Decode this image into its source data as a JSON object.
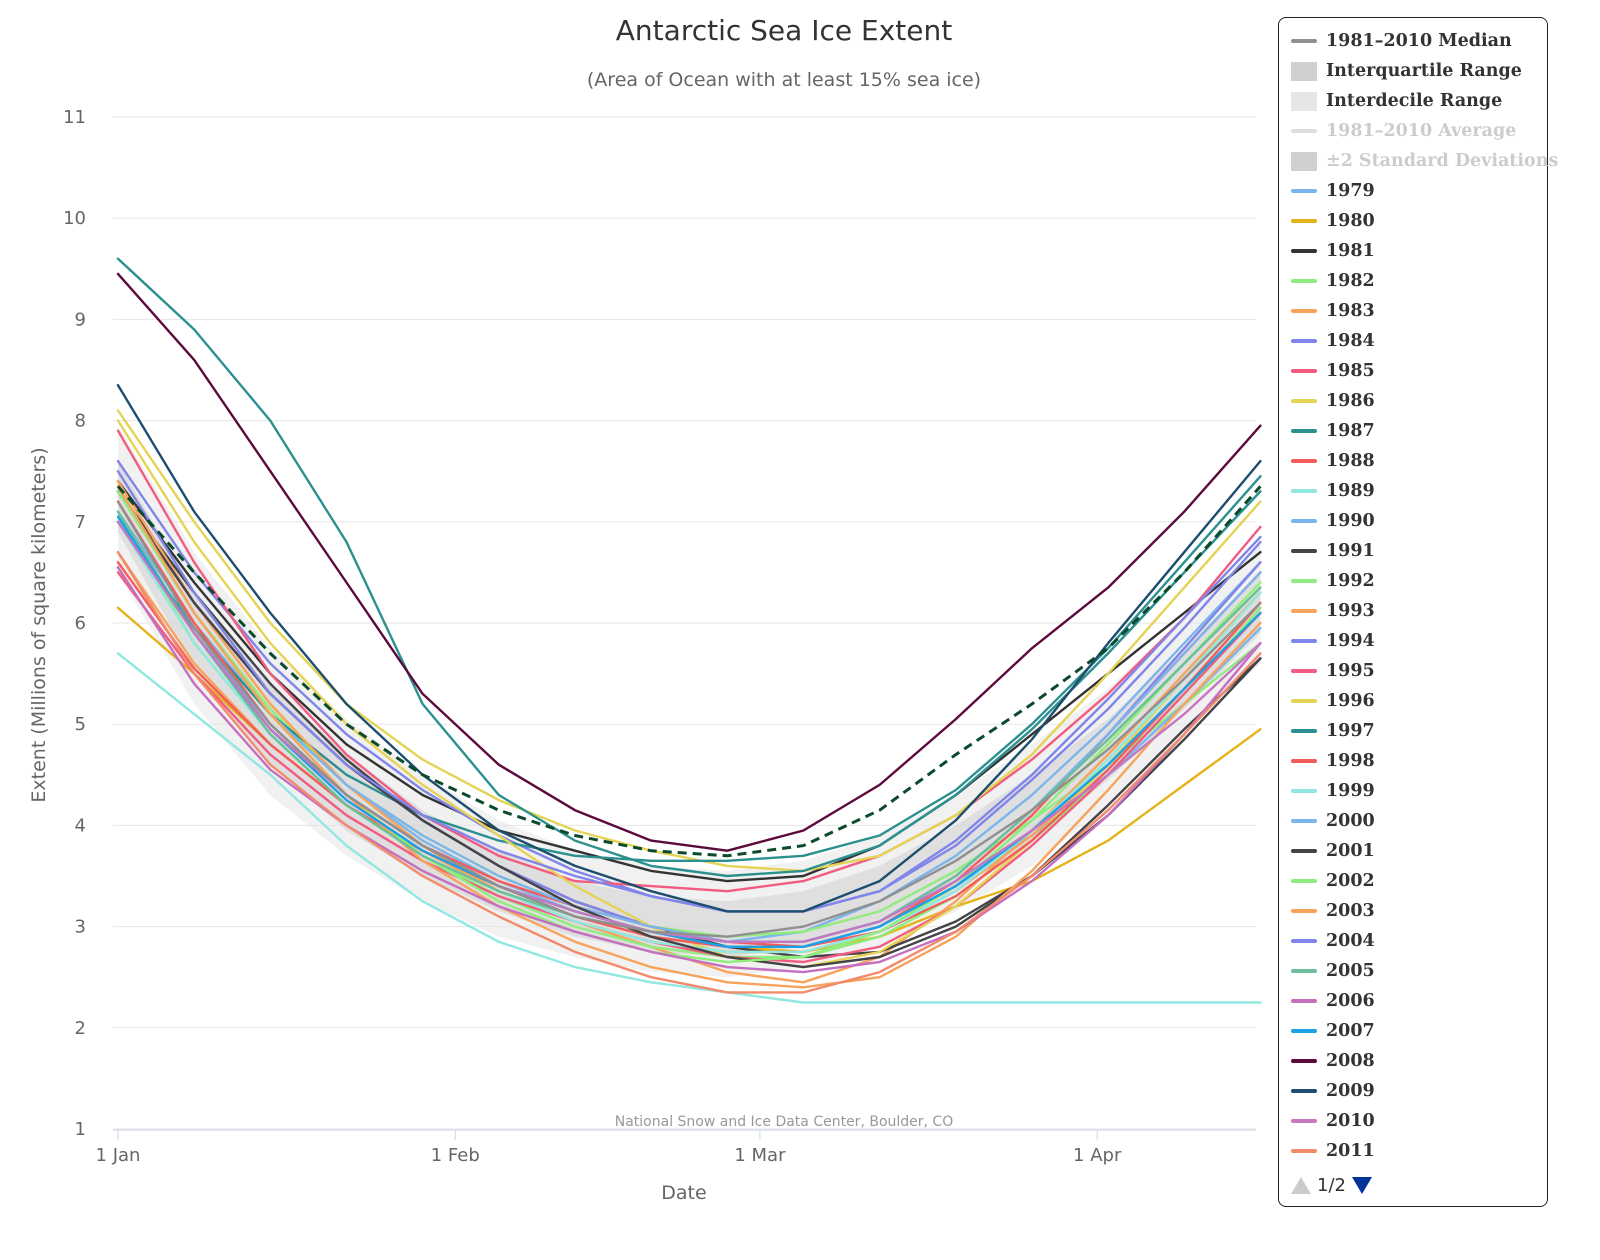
{
  "chart_data": {
    "type": "line",
    "title": "Antarctic Sea Ice Extent",
    "subtitle": "(Area of Ocean with at least 15% sea ice)",
    "xlabel": "Date",
    "ylabel": "Extent (Millions of square kilometers)",
    "credit": "National Snow and Ice Data Center, Boulder, CO",
    "xlim": [
      1,
      107
    ],
    "ylim": [
      1,
      11
    ],
    "yticks": [
      1,
      2,
      3,
      4,
      5,
      6,
      7,
      8,
      9,
      10,
      11
    ],
    "xticks": [
      {
        "label": "1 Jan",
        "day": 1
      },
      {
        "label": "1 Feb",
        "day": 32
      },
      {
        "label": "1 Mar",
        "day": 60
      },
      {
        "label": "1 Apr",
        "day": 91
      }
    ],
    "x": [
      1,
      8,
      15,
      22,
      29,
      36,
      43,
      50,
      57,
      64,
      71,
      78,
      85,
      92,
      99,
      106
    ],
    "median": {
      "name": "1981–2010 Median",
      "values": [
        7.2,
        5.95,
        5.0,
        4.3,
        3.8,
        3.4,
        3.1,
        2.95,
        2.9,
        3.0,
        3.25,
        3.65,
        4.15,
        4.75,
        5.45,
        6.2
      ]
    },
    "interquartile": {
      "name": "Interquartile Range",
      "lower": [
        6.9,
        5.55,
        4.6,
        3.95,
        3.5,
        3.15,
        2.9,
        2.75,
        2.7,
        2.8,
        3.0,
        3.35,
        3.85,
        4.45,
        5.15,
        5.9
      ],
      "upper": [
        7.6,
        6.3,
        5.4,
        4.7,
        4.15,
        3.75,
        3.45,
        3.3,
        3.25,
        3.35,
        3.6,
        4.0,
        4.5,
        5.05,
        5.75,
        6.5
      ]
    },
    "interdecile": {
      "name": "Interdecile Range",
      "lower": [
        6.5,
        5.2,
        4.3,
        3.7,
        3.25,
        2.9,
        2.7,
        2.55,
        2.5,
        2.6,
        2.8,
        3.15,
        3.6,
        4.2,
        4.9,
        5.6
      ],
      "upper": [
        7.95,
        6.7,
        5.75,
        5.05,
        4.5,
        4.05,
        3.75,
        3.6,
        3.55,
        3.65,
        3.9,
        4.3,
        4.8,
        5.35,
        6.05,
        6.8
      ]
    },
    "current": {
      "color": "#0b4a2a",
      "values": [
        7.35,
        6.5,
        5.7,
        5.0,
        4.5,
        4.15,
        3.9,
        3.75,
        3.7,
        3.8,
        4.15,
        4.7,
        5.2,
        5.75,
        6.5,
        7.35
      ]
    },
    "series": [
      {
        "name": "1979",
        "color": "#7cb5ec",
        "values": [
          7.1,
          6.0,
          5.1,
          4.4,
          3.85,
          3.45,
          3.15,
          2.95,
          2.85,
          2.95,
          3.25,
          3.7,
          4.3,
          5.0,
          5.8,
          6.6
        ]
      },
      {
        "name": "1980",
        "color": "#e5b319",
        "values": [
          6.15,
          5.5,
          4.8,
          4.2,
          3.75,
          3.4,
          3.1,
          2.9,
          2.8,
          2.75,
          2.9,
          3.2,
          3.45,
          3.85,
          4.4,
          4.95
        ]
      },
      {
        "name": "1981",
        "color": "#333333",
        "values": [
          7.4,
          6.4,
          5.5,
          4.8,
          4.3,
          3.95,
          3.75,
          3.55,
          3.45,
          3.5,
          3.8,
          4.3,
          4.9,
          5.5,
          6.1,
          6.7
        ]
      },
      {
        "name": "1982",
        "color": "#90ed7d",
        "values": [
          7.3,
          6.1,
          5.15,
          4.4,
          3.9,
          3.5,
          3.2,
          3.0,
          2.9,
          2.95,
          3.15,
          3.55,
          4.05,
          4.6,
          5.2,
          5.8
        ]
      },
      {
        "name": "1983",
        "color": "#f7a35c",
        "values": [
          6.7,
          5.6,
          4.8,
          4.2,
          3.75,
          3.35,
          3.05,
          2.8,
          2.55,
          2.45,
          2.7,
          3.25,
          3.95,
          4.7,
          5.5,
          6.3
        ]
      },
      {
        "name": "1984",
        "color": "#8085e9",
        "values": [
          7.6,
          6.5,
          5.6,
          4.9,
          4.35,
          3.9,
          3.55,
          3.3,
          3.15,
          3.15,
          3.35,
          3.8,
          4.45,
          5.15,
          5.95,
          6.8
        ]
      },
      {
        "name": "1985",
        "color": "#f15c80",
        "values": [
          7.9,
          6.6,
          5.5,
          4.7,
          4.1,
          3.7,
          3.45,
          3.4,
          3.35,
          3.45,
          3.7,
          4.1,
          4.65,
          5.3,
          6.05,
          6.95
        ]
      },
      {
        "name": "1986",
        "color": "#e4d354",
        "values": [
          8.1,
          7.0,
          6.0,
          5.2,
          4.65,
          4.25,
          3.95,
          3.75,
          3.6,
          3.55,
          3.7,
          4.1,
          4.7,
          5.5,
          6.35,
          7.2
        ]
      },
      {
        "name": "1987",
        "color": "#2b908f",
        "values": [
          7.0,
          5.95,
          5.1,
          4.5,
          4.1,
          3.85,
          3.7,
          3.65,
          3.65,
          3.7,
          3.9,
          4.35,
          5.0,
          5.75,
          6.6,
          7.45
        ]
      },
      {
        "name": "1988",
        "color": "#f45b5b",
        "values": [
          7.2,
          6.0,
          5.0,
          4.3,
          3.8,
          3.45,
          3.2,
          3.0,
          2.85,
          2.8,
          3.0,
          3.45,
          4.1,
          4.9,
          5.7,
          6.5
        ]
      },
      {
        "name": "1989",
        "color": "#91e8e1",
        "values": [
          5.7,
          5.1,
          4.5,
          3.8,
          3.25,
          2.85,
          2.6,
          2.45,
          2.35,
          2.25,
          2.25,
          2.25,
          2.25,
          2.25,
          2.25,
          2.25
        ]
      },
      {
        "name": "1990",
        "color": "#7cb5ec",
        "values": [
          7.0,
          5.9,
          5.0,
          4.3,
          3.8,
          3.4,
          3.1,
          2.9,
          2.8,
          2.8,
          3.0,
          3.4,
          3.9,
          4.5,
          5.2,
          5.95
        ]
      },
      {
        "name": "1991",
        "color": "#434348",
        "values": [
          7.3,
          6.3,
          5.4,
          4.65,
          4.05,
          3.6,
          3.25,
          3.0,
          2.8,
          2.7,
          2.75,
          3.05,
          3.5,
          4.1,
          4.85,
          5.65
        ]
      },
      {
        "name": "1992",
        "color": "#90ed7d",
        "values": [
          7.1,
          5.8,
          4.9,
          4.2,
          3.7,
          3.3,
          3.0,
          2.8,
          2.7,
          2.7,
          2.9,
          3.3,
          3.85,
          4.5,
          5.3,
          6.15
        ]
      },
      {
        "name": "1993",
        "color": "#f7a35c",
        "values": [
          7.4,
          6.2,
          5.2,
          4.4,
          3.8,
          3.35,
          3.05,
          2.85,
          2.75,
          2.75,
          2.95,
          3.35,
          3.9,
          4.6,
          5.35,
          6.1
        ]
      },
      {
        "name": "1994",
        "color": "#8085e9",
        "values": [
          7.3,
          6.2,
          5.3,
          4.6,
          4.05,
          3.6,
          3.25,
          3.0,
          2.85,
          2.85,
          3.05,
          3.5,
          4.15,
          4.9,
          5.75,
          6.6
        ]
      },
      {
        "name": "1995",
        "color": "#f15c80",
        "values": [
          6.5,
          5.5,
          4.7,
          4.1,
          3.65,
          3.3,
          3.05,
          2.85,
          2.7,
          2.65,
          2.8,
          3.2,
          3.8,
          4.5,
          5.3,
          6.1
        ]
      },
      {
        "name": "1996",
        "color": "#e4d354",
        "values": [
          8.0,
          6.8,
          5.8,
          5.0,
          4.4,
          3.9,
          3.4,
          3.0,
          2.7,
          2.6,
          2.75,
          3.2,
          3.85,
          4.6,
          5.45,
          6.3
        ]
      },
      {
        "name": "1997",
        "color": "#2b908f",
        "values": [
          9.6,
          8.9,
          8.0,
          6.8,
          5.2,
          4.3,
          3.85,
          3.6,
          3.5,
          3.55,
          3.8,
          4.3,
          4.95,
          5.7,
          6.5,
          7.3
        ]
      },
      {
        "name": "1998",
        "color": "#f45b5b",
        "values": [
          6.6,
          5.55,
          4.8,
          4.2,
          3.75,
          3.4,
          3.1,
          2.9,
          2.8,
          2.8,
          2.95,
          3.3,
          3.85,
          4.55,
          5.35,
          6.2
        ]
      },
      {
        "name": "1999",
        "color": "#91e8e1",
        "values": [
          7.0,
          5.8,
          4.9,
          4.2,
          3.7,
          3.35,
          3.05,
          2.85,
          2.75,
          2.75,
          2.95,
          3.35,
          3.95,
          4.65,
          5.45,
          6.3
        ]
      },
      {
        "name": "2000",
        "color": "#7cb5ec",
        "values": [
          7.3,
          6.1,
          5.1,
          4.4,
          3.9,
          3.5,
          3.2,
          3.0,
          2.85,
          2.85,
          3.05,
          3.5,
          4.15,
          4.9,
          5.7,
          6.5
        ]
      },
      {
        "name": "2001",
        "color": "#434348",
        "values": [
          7.3,
          6.2,
          5.3,
          4.6,
          4.05,
          3.6,
          3.2,
          2.9,
          2.7,
          2.6,
          2.7,
          3.0,
          3.5,
          4.2,
          4.95,
          5.65
        ]
      },
      {
        "name": "2002",
        "color": "#90ed7d",
        "values": [
          7.3,
          6.1,
          5.1,
          4.3,
          3.7,
          3.25,
          2.95,
          2.75,
          2.65,
          2.7,
          2.95,
          3.4,
          4.05,
          4.8,
          5.6,
          6.4
        ]
      },
      {
        "name": "2003",
        "color": "#f7a35c",
        "values": [
          7.35,
          6.1,
          5.1,
          4.3,
          3.65,
          3.2,
          2.85,
          2.6,
          2.45,
          2.4,
          2.5,
          2.9,
          3.55,
          4.35,
          5.2,
          6.0
        ]
      },
      {
        "name": "2004",
        "color": "#8085e9",
        "values": [
          7.5,
          6.3,
          5.3,
          4.6,
          4.1,
          3.75,
          3.5,
          3.3,
          3.15,
          3.15,
          3.35,
          3.85,
          4.5,
          5.25,
          6.05,
          6.85
        ]
      },
      {
        "name": "2005",
        "color": "#6bbf9a",
        "values": [
          7.1,
          5.9,
          4.9,
          4.2,
          3.7,
          3.35,
          3.1,
          2.95,
          2.85,
          2.85,
          3.05,
          3.5,
          4.15,
          4.85,
          5.6,
          6.35
        ]
      },
      {
        "name": "2006",
        "color": "#c56fbf",
        "values": [
          6.55,
          5.4,
          4.55,
          4.0,
          3.55,
          3.2,
          2.95,
          2.75,
          2.6,
          2.55,
          2.65,
          2.95,
          3.45,
          4.1,
          4.9,
          5.8
        ]
      },
      {
        "name": "2007",
        "color": "#1ca0e6",
        "values": [
          7.05,
          5.9,
          4.95,
          4.25,
          3.75,
          3.4,
          3.15,
          2.95,
          2.8,
          2.8,
          3.0,
          3.4,
          3.95,
          4.6,
          5.35,
          6.1
        ]
      },
      {
        "name": "2008",
        "color": "#5c0a3c",
        "values": [
          9.45,
          8.6,
          7.5,
          6.4,
          5.3,
          4.6,
          4.15,
          3.85,
          3.75,
          3.95,
          4.4,
          5.05,
          5.75,
          6.35,
          7.1,
          7.95
        ]
      },
      {
        "name": "2009",
        "color": "#1d4e6e",
        "values": [
          8.35,
          7.1,
          6.1,
          5.2,
          4.5,
          3.95,
          3.6,
          3.35,
          3.15,
          3.15,
          3.45,
          4.05,
          4.85,
          5.8,
          6.7,
          7.6
        ]
      },
      {
        "name": "2010",
        "color": "#c378c0",
        "values": [
          7.0,
          5.9,
          4.95,
          4.3,
          3.8,
          3.4,
          3.15,
          2.95,
          2.85,
          2.85,
          3.05,
          3.45,
          3.95,
          4.5,
          5.1,
          5.8
        ]
      },
      {
        "name": "2011",
        "color": "#f28a6b",
        "values": [
          6.7,
          5.5,
          4.6,
          4.0,
          3.5,
          3.1,
          2.75,
          2.5,
          2.35,
          2.35,
          2.55,
          2.95,
          3.5,
          4.15,
          4.9,
          5.7
        ]
      }
    ]
  },
  "legend": {
    "median_label": "1981–2010 Median",
    "iqr_label": "Interquartile Range",
    "idr_label": "Interdecile Range",
    "average_label": "1981–2010 Average",
    "stddev_label": "±2 Standard Deviations",
    "page_text": "1/2",
    "median_color": "#909090",
    "iqr_color": "#cfcfcf",
    "idr_color": "#e6e6e6",
    "hidden_color": "#dddddd"
  }
}
